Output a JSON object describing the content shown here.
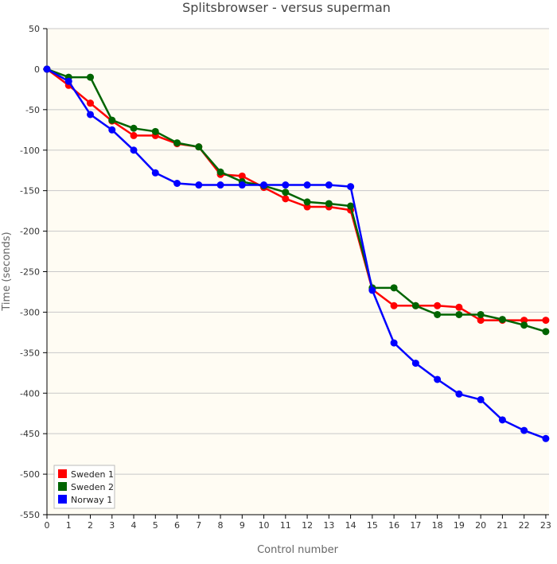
{
  "chart_data": {
    "type": "line",
    "title": "Splitsbrowser - versus superman",
    "xlabel": "Control number",
    "ylabel": "Time (seconds)",
    "ylim": [
      -550,
      50
    ],
    "y_ticks": [
      50,
      0,
      -50,
      -100,
      -150,
      -200,
      -250,
      -300,
      -350,
      -400,
      -450,
      -500,
      -550
    ],
    "grid": true,
    "legend_position": "bottom-left",
    "background": "#fffcf3",
    "x_ticks": [
      {
        "x": 0,
        "label": "0"
      },
      {
        "x": 1,
        "label": "1"
      },
      {
        "x": 2,
        "label": "2"
      },
      {
        "x": 3,
        "label": "3"
      },
      {
        "x": 4,
        "label": "4"
      },
      {
        "x": 5,
        "label": "5"
      },
      {
        "x": 6,
        "label": "6"
      },
      {
        "x": 7,
        "label": "7"
      },
      {
        "x": 8,
        "label": "8"
      },
      {
        "x": 9,
        "label": "9"
      },
      {
        "x": 10,
        "label": "10"
      },
      {
        "x": 11,
        "label": "11"
      },
      {
        "x": 12,
        "label": "12"
      },
      {
        "x": 13,
        "label": "13"
      },
      {
        "x": 14,
        "label": "14"
      },
      {
        "x": 15,
        "label": "15"
      },
      {
        "x": 16,
        "label": "16"
      },
      {
        "x": 17,
        "label": "17"
      },
      {
        "x": 18,
        "label": "18"
      },
      {
        "x": 19,
        "label": "19"
      },
      {
        "x": 20,
        "label": "20"
      },
      {
        "x": 21,
        "label": "21"
      },
      {
        "x": 22,
        "label": "22"
      },
      {
        "x": 23,
        "label": "23"
      }
    ],
    "series": [
      {
        "name": "Sweden 1",
        "color": "#ff0000",
        "points": [
          [
            0,
            0
          ],
          [
            1,
            -20
          ],
          [
            2,
            -42
          ],
          [
            3,
            -64
          ],
          [
            4,
            -82
          ],
          [
            5,
            -82
          ],
          [
            6,
            -92
          ],
          [
            7,
            -96
          ],
          [
            8,
            -130
          ],
          [
            9,
            -132
          ],
          [
            10,
            -146
          ],
          [
            11,
            -160
          ],
          [
            12,
            -170
          ],
          [
            13,
            -170
          ],
          [
            14,
            -174
          ],
          [
            15,
            -272
          ],
          [
            16,
            -292
          ],
          [
            17,
            -292
          ],
          [
            18,
            -292
          ],
          [
            19,
            -294
          ],
          [
            20,
            -310
          ],
          [
            21,
            -310
          ],
          [
            22,
            -310
          ],
          [
            23,
            -310
          ]
        ]
      },
      {
        "name": "Sweden 2",
        "color": "#006400",
        "points": [
          [
            0,
            0
          ],
          [
            1,
            -10
          ],
          [
            2,
            -10
          ],
          [
            3,
            -63
          ],
          [
            4,
            -73
          ],
          [
            5,
            -77
          ],
          [
            6,
            -91
          ],
          [
            7,
            -96
          ],
          [
            8,
            -127
          ],
          [
            9,
            -139
          ],
          [
            10,
            -144
          ],
          [
            11,
            -152
          ],
          [
            12,
            -164
          ],
          [
            13,
            -166
          ],
          [
            14,
            -169
          ],
          [
            15,
            -270
          ],
          [
            16,
            -270
          ],
          [
            17,
            -292
          ],
          [
            18,
            -303
          ],
          [
            19,
            -303
          ],
          [
            20,
            -303
          ],
          [
            21,
            -309
          ],
          [
            22,
            -316
          ],
          [
            23,
            -324
          ]
        ]
      },
      {
        "name": "Norway 1",
        "color": "#0000ff",
        "points": [
          [
            0,
            0
          ],
          [
            1,
            -15
          ],
          [
            2,
            -56
          ],
          [
            3,
            -75
          ],
          [
            4,
            -100
          ],
          [
            5,
            -128
          ],
          [
            6,
            -141
          ],
          [
            7,
            -143
          ],
          [
            8,
            -143
          ],
          [
            9,
            -143
          ],
          [
            10,
            -143
          ],
          [
            11,
            -143
          ],
          [
            12,
            -143
          ],
          [
            13,
            -143
          ],
          [
            14,
            -145
          ],
          [
            15,
            -273
          ],
          [
            16,
            -338
          ],
          [
            17,
            -363
          ],
          [
            18,
            -383
          ],
          [
            19,
            -401
          ],
          [
            20,
            -408
          ],
          [
            21,
            -433
          ],
          [
            22,
            -446
          ],
          [
            23,
            -456
          ]
        ]
      }
    ]
  }
}
